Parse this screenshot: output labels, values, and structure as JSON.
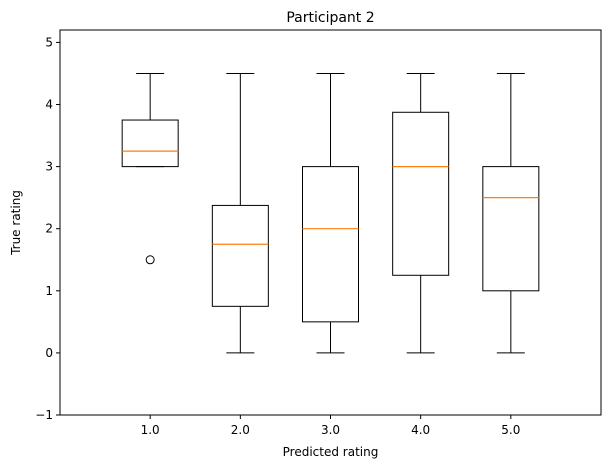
{
  "chart_data": {
    "type": "boxplot",
    "title": "Participant 2",
    "xlabel": "Predicted rating",
    "ylabel": "True rating",
    "ylim": [
      -1,
      5.2
    ],
    "yticks": [
      -1,
      0,
      1,
      2,
      3,
      4,
      5
    ],
    "grid": false,
    "legend": "none",
    "categories": [
      "1.0",
      "2.0",
      "3.0",
      "4.0",
      "5.0"
    ],
    "boxes": [
      {
        "category": "1.0",
        "whisker_low": 3.0,
        "q1": 3.0,
        "median": 3.25,
        "q3": 3.75,
        "whisker_high": 4.5,
        "outliers": [
          1.5
        ]
      },
      {
        "category": "2.0",
        "whisker_low": 0.0,
        "q1": 0.75,
        "median": 1.75,
        "q3": 2.375,
        "whisker_high": 4.5,
        "outliers": []
      },
      {
        "category": "3.0",
        "whisker_low": 0.0,
        "q1": 0.5,
        "median": 2.0,
        "q3": 3.0,
        "whisker_high": 4.5,
        "outliers": []
      },
      {
        "category": "4.0",
        "whisker_low": 0.0,
        "q1": 1.25,
        "median": 3.0,
        "q3": 3.875,
        "whisker_high": 4.5,
        "outliers": []
      },
      {
        "category": "5.0",
        "whisker_low": 0.0,
        "q1": 1.0,
        "median": 2.5,
        "q3": 3.0,
        "whisker_high": 4.5,
        "outliers": []
      }
    ],
    "colors": {
      "box": "#000000",
      "median": "#ff7f0e",
      "axes": "#000000",
      "background": "#ffffff"
    }
  }
}
